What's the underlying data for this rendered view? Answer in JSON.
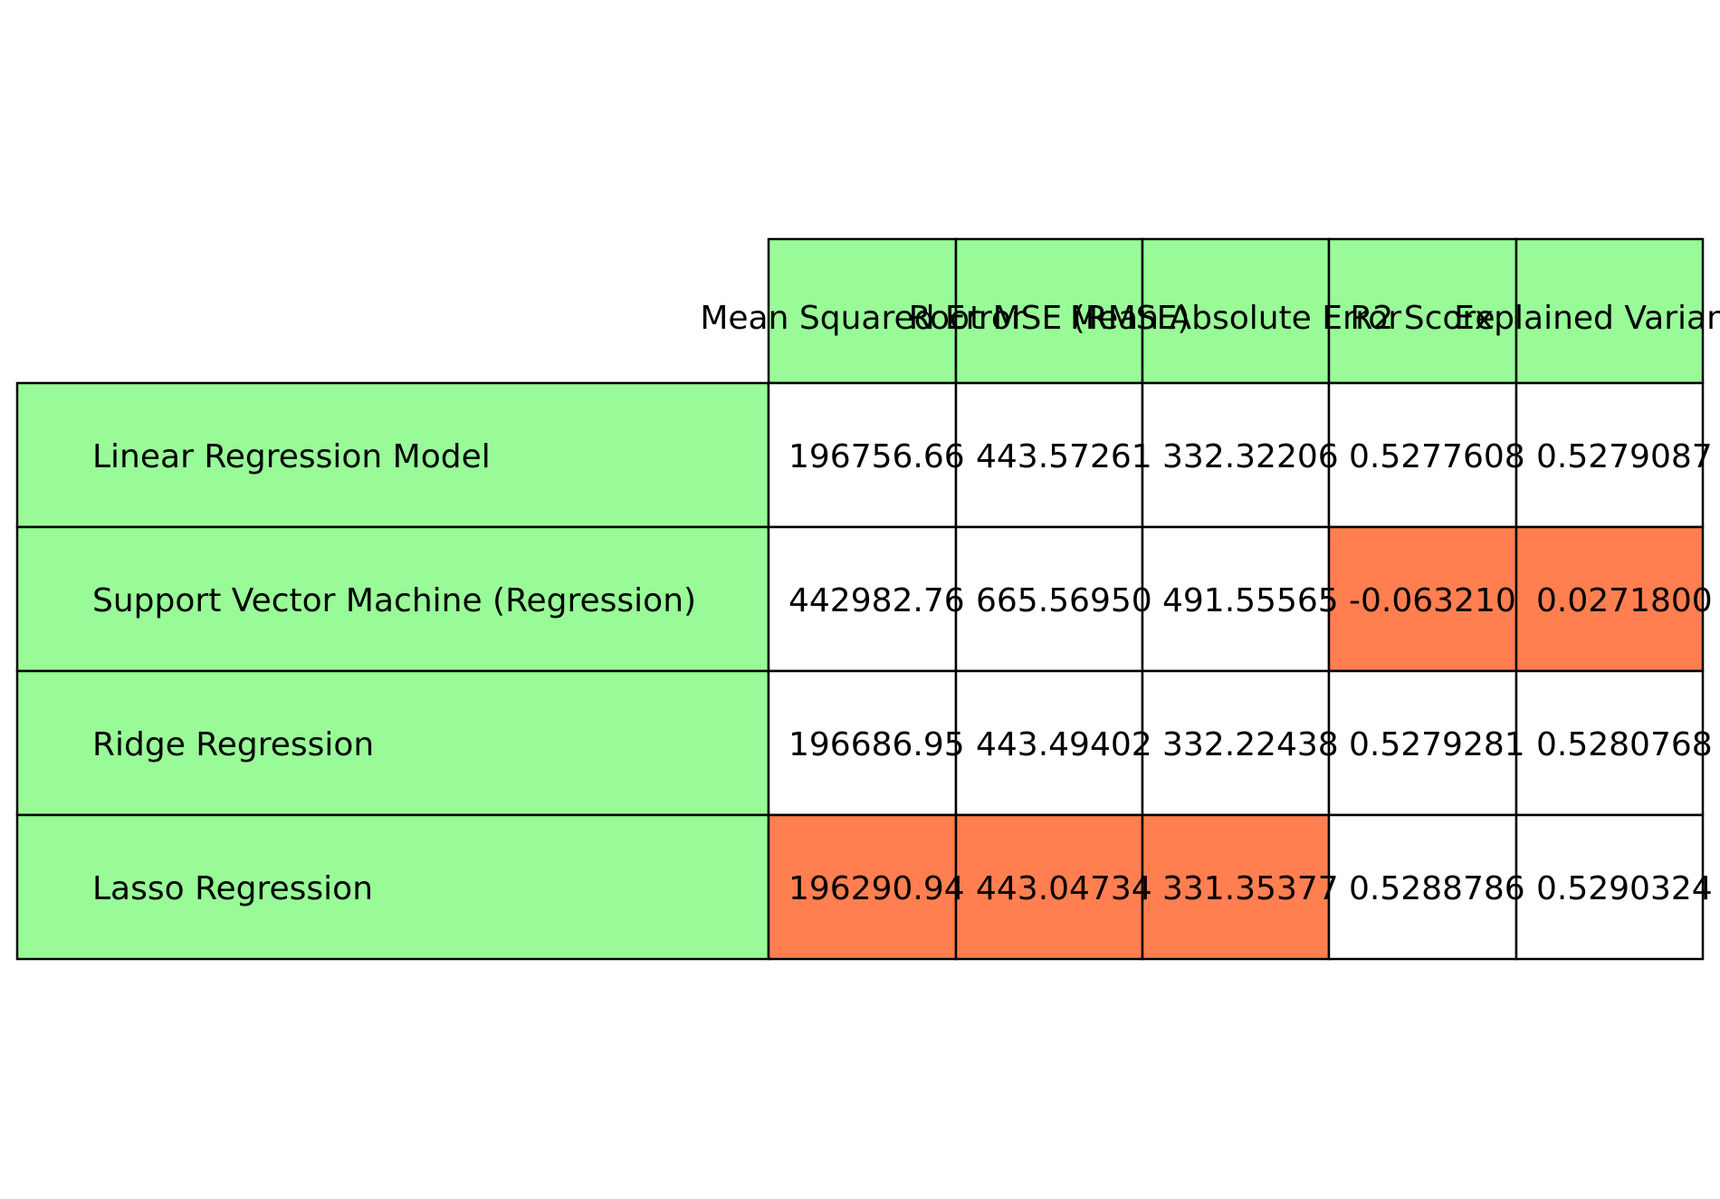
{
  "chart_data": {
    "type": "table",
    "column_headers": [
      "Mean Squared Error",
      "Root MSE (RMSE)",
      "Mean Absolute Error",
      "R2 Score",
      "Explained Variance"
    ],
    "rows": [
      {
        "label": "Linear Regression Model",
        "values": [
          "196756.66",
          "443.57261",
          "332.32206",
          "0.5277608",
          "0.5279087"
        ]
      },
      {
        "label": "Support Vector Machine (Regression)",
        "values": [
          "442982.76",
          "665.56950",
          "491.55565",
          "-0.063210",
          "0.0271800"
        ]
      },
      {
        "label": "Ridge Regression",
        "values": [
          "196686.95",
          "443.49402",
          "332.22438",
          "0.5279281",
          "0.5280768"
        ]
      },
      {
        "label": "Lasso Regression",
        "values": [
          "196290.94",
          "443.04734",
          "331.35377",
          "0.5288786",
          "0.5290324"
        ]
      }
    ],
    "highlight": [
      [
        false,
        false,
        false,
        false,
        false
      ],
      [
        false,
        false,
        false,
        true,
        true
      ],
      [
        false,
        false,
        false,
        false,
        false
      ],
      [
        true,
        true,
        true,
        false,
        false
      ]
    ],
    "colors": {
      "header_fill": "#98fb98",
      "highlight_fill": "#ff7f50",
      "cell_fill": "#ffffff",
      "edge": "#000000"
    }
  }
}
